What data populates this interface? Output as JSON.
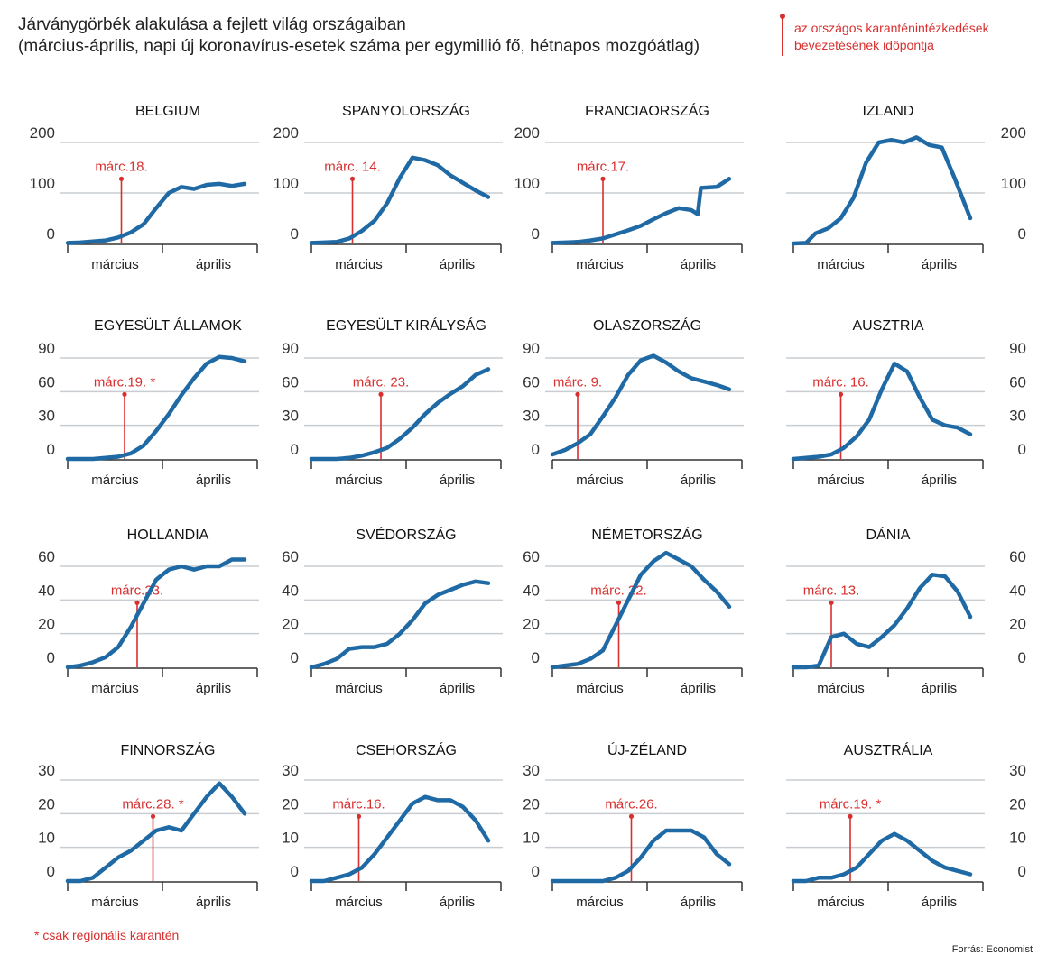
{
  "header": {
    "title_line1": "Járványgörbék alakulása a fejlett világ országaiban",
    "title_line2": "(március-április, napi új koronavírus-esetek száma per egymillió fő, hétnapos mozgóátlag)"
  },
  "legend": {
    "line1": "az országos karanténintézkedések",
    "line2": "bevezetésének időpontja"
  },
  "footnote": "* csak regionális karantén",
  "source": "Forrás: Economist",
  "colors": {
    "line": "#1f6aa5",
    "lockdown": "#d82f2f",
    "grid": "#c9cdd2",
    "axis": "#333333"
  },
  "chart_data": [
    {
      "type": "line",
      "title": "BELGIUM",
      "x_labels": [
        "március",
        "április"
      ],
      "ylim": [
        0,
        200
      ],
      "y_ticks": [
        0,
        100,
        200
      ],
      "lockdown": {
        "label": "márc.18.",
        "day": 18
      },
      "x": [
        1,
        5,
        9,
        13,
        17,
        21,
        25,
        29,
        33,
        37,
        41,
        45,
        49,
        53,
        57
      ],
      "y": [
        1,
        2,
        4,
        6,
        12,
        22,
        38,
        70,
        100,
        112,
        108,
        116,
        118,
        114,
        118
      ]
    },
    {
      "type": "line",
      "title": "SPANYOLORSZÁG",
      "x_labels": [
        "március",
        "április"
      ],
      "ylim": [
        0,
        200
      ],
      "y_ticks": [
        0,
        100,
        200
      ],
      "lockdown": {
        "label": "márc. 14.",
        "day": 14
      },
      "x": [
        1,
        5,
        9,
        13,
        17,
        21,
        25,
        29,
        33,
        37,
        41,
        45,
        49,
        53,
        57
      ],
      "y": [
        1,
        2,
        3,
        10,
        25,
        45,
        80,
        130,
        170,
        165,
        155,
        135,
        120,
        105,
        92
      ]
    },
    {
      "type": "line",
      "title": "FRANCIAORSZÁG",
      "x_labels": [
        "március",
        "április"
      ],
      "ylim": [
        0,
        200
      ],
      "y_ticks": [
        0,
        100,
        200
      ],
      "lockdown": {
        "label": "márc.17.",
        "day": 17
      },
      "x": [
        1,
        5,
        9,
        13,
        17,
        21,
        25,
        29,
        33,
        37,
        41,
        45,
        47,
        48,
        53,
        57
      ],
      "y": [
        1,
        2,
        3,
        6,
        10,
        18,
        26,
        35,
        48,
        60,
        70,
        66,
        58,
        110,
        112,
        128
      ]
    },
    {
      "type": "line",
      "title": "IZLAND",
      "x_labels": [
        "március",
        "április"
      ],
      "ylim": [
        0,
        200
      ],
      "y_ticks": [
        0,
        100,
        200
      ],
      "lockdown": null,
      "x": [
        1,
        5,
        8,
        12,
        16,
        20,
        24,
        28,
        32,
        36,
        40,
        44,
        48,
        52,
        57
      ],
      "y": [
        0,
        1,
        20,
        30,
        50,
        90,
        160,
        200,
        205,
        200,
        210,
        195,
        190,
        130,
        50
      ]
    },
    {
      "type": "line",
      "title": "EGYESÜLT ÁLLAMOK",
      "x_labels": [
        "március",
        "április"
      ],
      "ylim": [
        0,
        90
      ],
      "y_ticks": [
        0,
        30,
        60,
        90
      ],
      "lockdown": {
        "label": "márc.19. *",
        "day": 19
      },
      "x": [
        1,
        5,
        9,
        13,
        17,
        21,
        25,
        29,
        33,
        37,
        41,
        45,
        49,
        53,
        57
      ],
      "y": [
        0,
        0,
        0,
        1,
        2,
        5,
        12,
        25,
        40,
        57,
        72,
        85,
        91,
        90,
        87
      ]
    },
    {
      "type": "line",
      "title": "EGYESÜLT KIRÁLYSÁG",
      "x_labels": [
        "március",
        "április"
      ],
      "ylim": [
        0,
        90
      ],
      "y_ticks": [
        0,
        30,
        60,
        90
      ],
      "lockdown": {
        "label": "márc. 23.",
        "day": 23
      },
      "x": [
        1,
        5,
        9,
        13,
        17,
        21,
        25,
        29,
        33,
        37,
        41,
        45,
        49,
        53,
        57
      ],
      "y": [
        0,
        0,
        0,
        1,
        3,
        6,
        10,
        18,
        28,
        40,
        50,
        58,
        65,
        75,
        80
      ]
    },
    {
      "type": "line",
      "title": "OLASZORSZÁG",
      "x_labels": [
        "március",
        "április"
      ],
      "ylim": [
        0,
        90
      ],
      "y_ticks": [
        0,
        30,
        60,
        90
      ],
      "lockdown": {
        "label": "márc. 9.",
        "day": 9
      },
      "x": [
        1,
        5,
        9,
        13,
        17,
        21,
        25,
        29,
        33,
        37,
        41,
        45,
        49,
        53,
        57
      ],
      "y": [
        4,
        8,
        14,
        22,
        38,
        55,
        75,
        88,
        92,
        86,
        78,
        72,
        69,
        66,
        62
      ]
    },
    {
      "type": "line",
      "title": "AUSZTRIA",
      "x_labels": [
        "március",
        "április"
      ],
      "ylim": [
        0,
        90
      ],
      "y_ticks": [
        0,
        30,
        60,
        90
      ],
      "lockdown": {
        "label": "márc. 16.",
        "day": 16
      },
      "x": [
        1,
        5,
        9,
        13,
        17,
        21,
        25,
        29,
        33,
        37,
        41,
        45,
        49,
        53,
        57
      ],
      "y": [
        0,
        1,
        2,
        4,
        10,
        20,
        35,
        62,
        85,
        78,
        55,
        35,
        30,
        28,
        22
      ]
    },
    {
      "type": "line",
      "title": "HOLLANDIA",
      "x_labels": [
        "március",
        "április"
      ],
      "ylim": [
        0,
        60
      ],
      "y_ticks": [
        0,
        20,
        40,
        60
      ],
      "lockdown": {
        "label": "márc.23.",
        "day": 23
      },
      "x": [
        1,
        5,
        9,
        13,
        17,
        21,
        25,
        29,
        33,
        37,
        41,
        45,
        49,
        53,
        57
      ],
      "y": [
        0,
        1,
        3,
        6,
        12,
        24,
        38,
        52,
        58,
        60,
        58,
        60,
        60,
        64,
        64
      ]
    },
    {
      "type": "line",
      "title": "SVÉDORSZÁG",
      "x_labels": [
        "március",
        "április"
      ],
      "ylim": [
        0,
        60
      ],
      "y_ticks": [
        0,
        20,
        40,
        60
      ],
      "lockdown": null,
      "x": [
        1,
        5,
        9,
        13,
        17,
        21,
        25,
        29,
        33,
        37,
        41,
        45,
        49,
        53,
        57
      ],
      "y": [
        0,
        2,
        5,
        11,
        12,
        12,
        14,
        20,
        28,
        38,
        43,
        46,
        49,
        51,
        50
      ]
    },
    {
      "type": "line",
      "title": "NÉMETORSZÁG",
      "x_labels": [
        "március",
        "április"
      ],
      "ylim": [
        0,
        60
      ],
      "y_ticks": [
        0,
        20,
        40,
        60
      ],
      "lockdown": {
        "label": "márc. 22.",
        "day": 22
      },
      "x": [
        1,
        5,
        9,
        13,
        17,
        21,
        25,
        29,
        33,
        37,
        41,
        45,
        49,
        53,
        57
      ],
      "y": [
        0,
        1,
        2,
        5,
        10,
        25,
        40,
        55,
        63,
        68,
        64,
        60,
        52,
        45,
        36
      ]
    },
    {
      "type": "line",
      "title": "DÁNIA",
      "x_labels": [
        "március",
        "április"
      ],
      "ylim": [
        0,
        60
      ],
      "y_ticks": [
        0,
        20,
        40,
        60
      ],
      "lockdown": {
        "label": "márc. 13.",
        "day": 13
      },
      "x": [
        1,
        5,
        9,
        13,
        17,
        21,
        25,
        29,
        33,
        37,
        41,
        45,
        49,
        53,
        57
      ],
      "y": [
        0,
        0,
        1,
        18,
        20,
        14,
        12,
        18,
        25,
        35,
        47,
        55,
        54,
        45,
        30
      ]
    },
    {
      "type": "line",
      "title": "FINNORSZÁG",
      "x_labels": [
        "március",
        "április"
      ],
      "ylim": [
        0,
        30
      ],
      "y_ticks": [
        0,
        10,
        20,
        30
      ],
      "lockdown": {
        "label": "márc.28. *",
        "day": 28
      },
      "x": [
        1,
        5,
        9,
        13,
        17,
        21,
        25,
        29,
        33,
        37,
        41,
        45,
        49,
        53,
        57
      ],
      "y": [
        0,
        0,
        1,
        4,
        7,
        9,
        12,
        15,
        16,
        15,
        20,
        25,
        29,
        25,
        20
      ]
    },
    {
      "type": "line",
      "title": "CSEHORSZÁG",
      "x_labels": [
        "március",
        "április"
      ],
      "ylim": [
        0,
        30
      ],
      "y_ticks": [
        0,
        10,
        20,
        30
      ],
      "lockdown": {
        "label": "márc.16.",
        "day": 16
      },
      "x": [
        1,
        5,
        9,
        13,
        17,
        21,
        25,
        29,
        33,
        37,
        41,
        45,
        49,
        53,
        57
      ],
      "y": [
        0,
        0,
        1,
        2,
        4,
        8,
        13,
        18,
        23,
        25,
        24,
        24,
        22,
        18,
        12
      ]
    },
    {
      "type": "line",
      "title": "ÚJ-ZÉLAND",
      "x_labels": [
        "március",
        "április"
      ],
      "ylim": [
        0,
        30
      ],
      "y_ticks": [
        0,
        10,
        20,
        30
      ],
      "lockdown": {
        "label": "márc.26.",
        "day": 26
      },
      "x": [
        1,
        5,
        9,
        13,
        17,
        21,
        25,
        29,
        33,
        37,
        41,
        45,
        49,
        53,
        57
      ],
      "y": [
        0,
        0,
        0,
        0,
        0,
        1,
        3,
        7,
        12,
        15,
        15,
        15,
        13,
        8,
        5
      ]
    },
    {
      "type": "line",
      "title": "AUSZTRÁLIA",
      "x_labels": [
        "március",
        "április"
      ],
      "ylim": [
        0,
        30
      ],
      "y_ticks": [
        0,
        10,
        20,
        30
      ],
      "lockdown": {
        "label": "márc.19. *",
        "day": 19
      },
      "x": [
        1,
        5,
        9,
        13,
        17,
        21,
        25,
        29,
        33,
        37,
        41,
        45,
        49,
        53,
        57
      ],
      "y": [
        0,
        0,
        1,
        1,
        2,
        4,
        8,
        12,
        14,
        12,
        9,
        6,
        4,
        3,
        2
      ]
    }
  ]
}
